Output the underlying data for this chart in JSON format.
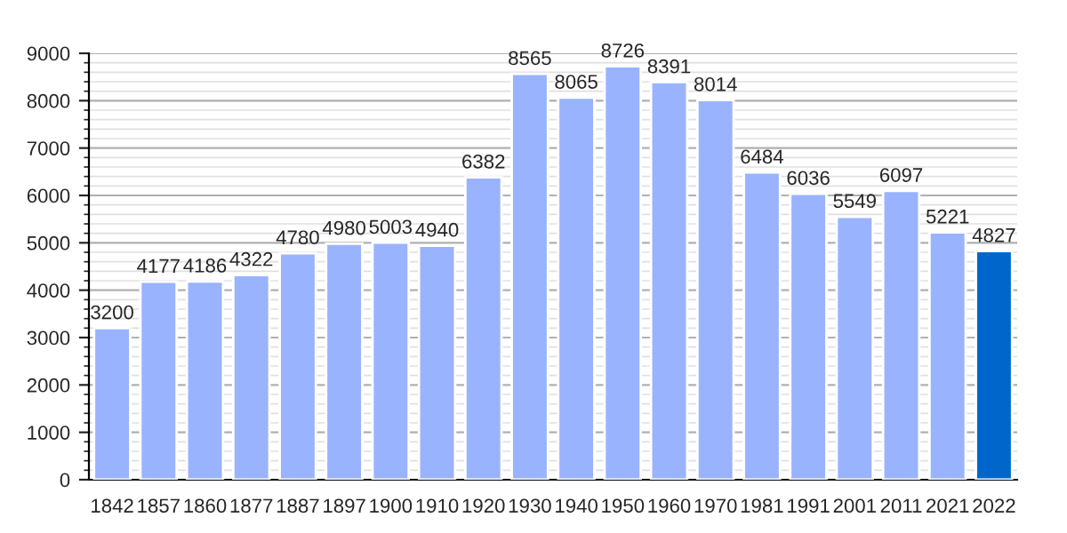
{
  "chart_data": {
    "type": "bar",
    "categories": [
      "1842",
      "1857",
      "1860",
      "1877",
      "1887",
      "1897",
      "1900",
      "1910",
      "1920",
      "1930",
      "1940",
      "1950",
      "1960",
      "1970",
      "1981",
      "1991",
      "2001",
      "2011",
      "2021",
      "2022"
    ],
    "values": [
      3200,
      4177,
      4186,
      4322,
      4780,
      4980,
      5003,
      4940,
      6382,
      8565,
      8065,
      8726,
      8391,
      8014,
      6484,
      6036,
      5549,
      6097,
      5221,
      4827
    ],
    "colors": [
      "#99b3ff",
      "#99b3ff",
      "#99b3ff",
      "#99b3ff",
      "#99b3ff",
      "#99b3ff",
      "#99b3ff",
      "#99b3ff",
      "#99b3ff",
      "#99b3ff",
      "#99b3ff",
      "#99b3ff",
      "#99b3ff",
      "#99b3ff",
      "#99b3ff",
      "#99b3ff",
      "#99b3ff",
      "#99b3ff",
      "#99b3ff",
      "#0066cc"
    ],
    "ylim": [
      0,
      9000
    ],
    "yticks": [
      0,
      1000,
      2000,
      3000,
      4000,
      5000,
      6000,
      7000,
      8000,
      9000
    ],
    "grid": "y",
    "data_labels": true
  }
}
